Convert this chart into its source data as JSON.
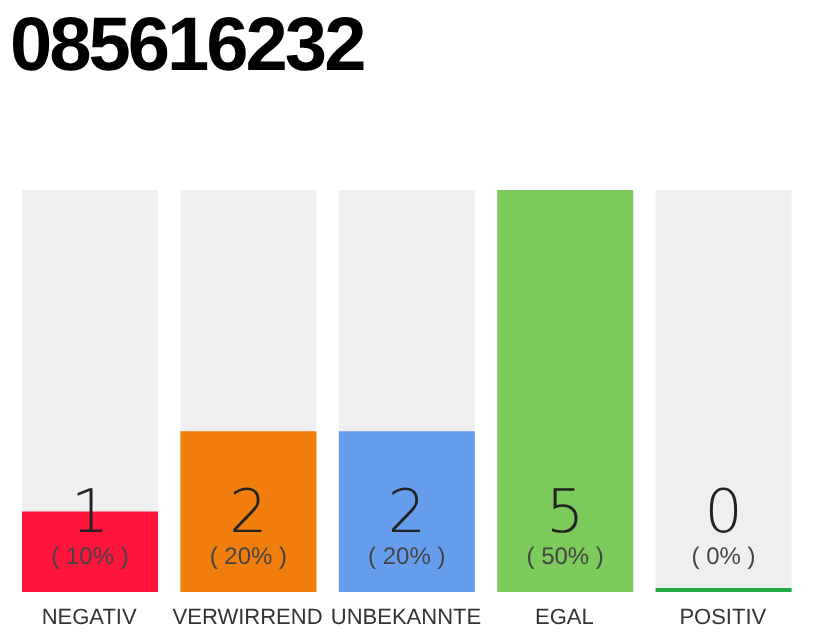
{
  "chart_data": {
    "type": "bar",
    "title": "085616232",
    "categories": [
      "NEGATIV",
      "VERWIRREND",
      "UNBEKANNTE",
      "EGAL",
      "POSITIV"
    ],
    "values": [
      10,
      20,
      20,
      50,
      0
    ],
    "colors": [
      "#ff143c",
      "#f07d0c",
      "#679ded",
      "#7cc95c",
      "#22aa44"
    ],
    "value_labels": [
      "( 10% )",
      "( 20% )",
      "( 20% )",
      "( 50% )",
      "( 0% )"
    ],
    "tick_labels": "x",
    "annotations": [
      "1",
      "2",
      "2",
      "5",
      "0"
    ]
  }
}
